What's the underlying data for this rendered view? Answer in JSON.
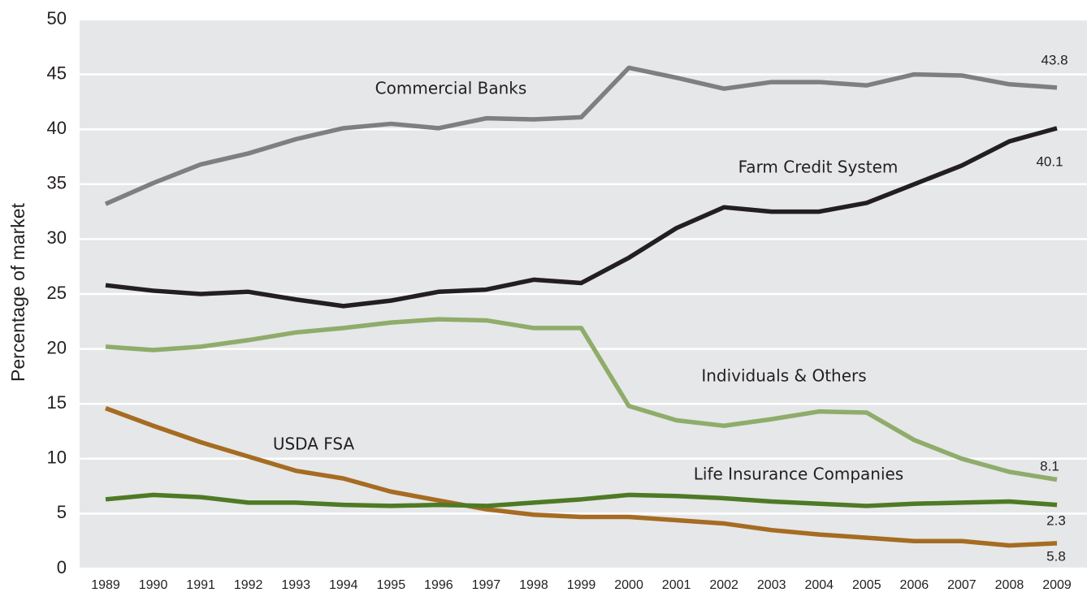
{
  "chart_data": {
    "type": "line",
    "y_label": "Percentage of market",
    "categories": [
      "1989",
      "1990",
      "1991",
      "1992",
      "1993",
      "1994",
      "1995",
      "1996",
      "1997",
      "1998",
      "1999",
      "2000",
      "2001",
      "2002",
      "2003",
      "2004",
      "2005",
      "2006",
      "2007",
      "2008",
      "2009"
    ],
    "ylim": [
      0,
      50
    ],
    "yticks": [
      0,
      5,
      10,
      15,
      20,
      25,
      30,
      35,
      40,
      45,
      50
    ],
    "grid": true,
    "series": [
      {
        "name": "Commercial Banks",
        "color": "#7f7f7f",
        "values": [
          33.2,
          35.1,
          36.8,
          37.8,
          39.1,
          40.1,
          40.5,
          40.1,
          41.0,
          40.9,
          41.1,
          45.6,
          44.7,
          43.7,
          44.3,
          44.3,
          44.0,
          45.0,
          44.9,
          44.1,
          43.8
        ]
      },
      {
        "name": "Farm Credit System",
        "color": "#231f20",
        "values": [
          25.8,
          25.3,
          25.0,
          25.2,
          24.5,
          23.9,
          24.4,
          25.2,
          25.4,
          26.3,
          26.0,
          28.3,
          31.0,
          32.9,
          32.5,
          32.5,
          33.3,
          35.0,
          36.7,
          38.9,
          40.1
        ]
      },
      {
        "name": "Individuals & Others",
        "color": "#8fac6b",
        "values": [
          20.2,
          19.9,
          20.2,
          20.8,
          21.5,
          21.9,
          22.4,
          22.7,
          22.6,
          21.9,
          21.9,
          14.8,
          13.5,
          13.0,
          13.6,
          14.3,
          14.2,
          11.7,
          10.0,
          8.8,
          8.1
        ]
      },
      {
        "name": "USDA FSA",
        "color": "#a56c22",
        "values": [
          14.6,
          13.0,
          11.5,
          10.2,
          8.9,
          8.2,
          7.0,
          6.2,
          5.4,
          4.9,
          4.7,
          4.7,
          4.4,
          4.1,
          3.5,
          3.1,
          2.8,
          2.5,
          2.5,
          2.1,
          2.3
        ]
      },
      {
        "name": "Life Insurance Companies",
        "color": "#4e7a25",
        "values": [
          6.3,
          6.7,
          6.5,
          6.0,
          6.0,
          5.8,
          5.7,
          5.8,
          5.7,
          6.0,
          6.3,
          6.7,
          6.6,
          6.4,
          6.1,
          5.9,
          5.7,
          5.9,
          6.0,
          6.1,
          5.8
        ]
      }
    ]
  }
}
